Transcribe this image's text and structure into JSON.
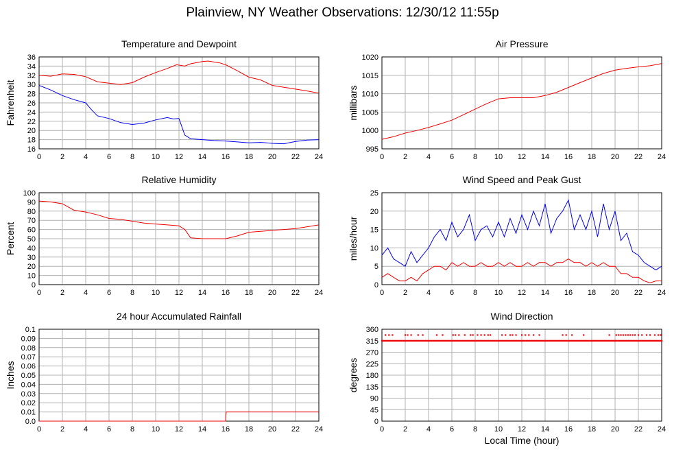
{
  "title": "Plainview, NY Weather Observations: 12/30/12 11:55p",
  "shared_xlabel": "Local Time (hour)",
  "colors": {
    "red": "#ee0000",
    "blue": "#0000ee",
    "grid": "#b0b0b0"
  },
  "chart_data": [
    {
      "type": "line",
      "title": "Temperature and Dewpoint",
      "ylabel": "Fahrenheit",
      "xlim": [
        0,
        24
      ],
      "ylim": [
        16,
        36
      ],
      "xticks": [
        0,
        2,
        4,
        6,
        8,
        10,
        12,
        14,
        16,
        18,
        20,
        22,
        24
      ],
      "yticks": [
        16,
        18,
        20,
        22,
        24,
        26,
        28,
        30,
        32,
        34,
        36
      ],
      "grid": true,
      "series": [
        {
          "color": "#ee0000",
          "x": [
            0,
            1,
            2,
            3,
            4,
            5,
            6,
            7,
            8,
            9,
            10,
            11,
            11.8,
            12.5,
            13,
            14,
            14.5,
            15.5,
            16,
            17,
            18,
            19,
            20,
            21,
            22,
            23,
            24
          ],
          "y": [
            32,
            31.8,
            32.3,
            32.2,
            31.7,
            30.6,
            30.3,
            30,
            30.4,
            31.6,
            32.6,
            33.5,
            34.3,
            34,
            34.5,
            35,
            35.1,
            34.7,
            34.3,
            33,
            31.6,
            31,
            29.8,
            29.4,
            29,
            28.6,
            28.1
          ]
        },
        {
          "color": "#0000ee",
          "x": [
            0,
            1,
            2,
            3,
            4,
            4.5,
            5,
            6,
            7,
            8,
            9,
            10,
            11,
            11.5,
            12,
            12.5,
            13,
            14,
            15,
            16,
            17,
            18,
            19,
            20,
            21,
            22,
            23,
            24
          ],
          "y": [
            29.8,
            28.8,
            27.6,
            26.7,
            26,
            24.5,
            23.2,
            22.6,
            21.7,
            21.3,
            21.6,
            22.3,
            22.8,
            22.5,
            22.6,
            19,
            18.2,
            18,
            17.8,
            17.7,
            17.5,
            17.3,
            17.4,
            17.2,
            17.1,
            17.6,
            17.9,
            18
          ]
        }
      ]
    },
    {
      "type": "line",
      "title": "Air Pressure",
      "ylabel": "millibars",
      "xlim": [
        0,
        24
      ],
      "ylim": [
        995,
        1020
      ],
      "xticks": [
        0,
        2,
        4,
        6,
        8,
        10,
        12,
        14,
        16,
        18,
        20,
        22,
        24
      ],
      "yticks": [
        995,
        1000,
        1005,
        1010,
        1015,
        1020
      ],
      "grid": true,
      "series": [
        {
          "color": "#ee0000",
          "x": [
            0,
            1,
            2,
            3,
            4,
            5,
            6,
            7,
            8,
            9,
            10,
            11,
            12,
            13,
            14,
            15,
            16,
            17,
            18,
            19,
            20,
            21,
            22,
            23,
            24
          ],
          "y": [
            997.6,
            998.3,
            999.3,
            1000,
            1000.8,
            1001.8,
            1002.8,
            1004.3,
            1005.8,
            1007.3,
            1008.6,
            1008.9,
            1008.9,
            1008.9,
            1009.5,
            1010.4,
            1011.7,
            1013,
            1014.3,
            1015.5,
            1016.4,
            1016.9,
            1017.3,
            1017.6,
            1018.2
          ]
        }
      ]
    },
    {
      "type": "line",
      "title": "Relative Humidity",
      "ylabel": "Percent",
      "xlim": [
        0,
        24
      ],
      "ylim": [
        0,
        100
      ],
      "xticks": [
        0,
        2,
        4,
        6,
        8,
        10,
        12,
        14,
        16,
        18,
        20,
        22,
        24
      ],
      "yticks": [
        0,
        10,
        20,
        30,
        40,
        50,
        60,
        70,
        80,
        90,
        100
      ],
      "grid": true,
      "series": [
        {
          "color": "#ee0000",
          "x": [
            0,
            1,
            2,
            3,
            4,
            5,
            6,
            7,
            8,
            9,
            10,
            11,
            12,
            12.5,
            13,
            14,
            15,
            16,
            17,
            18,
            19,
            20,
            21,
            22,
            23,
            24
          ],
          "y": [
            91,
            90,
            88,
            81,
            79,
            76,
            72,
            71,
            69,
            67,
            66,
            65,
            64,
            60,
            51,
            50,
            50,
            50,
            53,
            57,
            58,
            59,
            60,
            61,
            63,
            65
          ]
        }
      ]
    },
    {
      "type": "line",
      "title": "Wind Speed and Peak Gust",
      "ylabel": "miles/hour",
      "xlim": [
        0,
        24
      ],
      "ylim": [
        0,
        25
      ],
      "xticks": [
        0,
        2,
        4,
        6,
        8,
        10,
        12,
        14,
        16,
        18,
        20,
        22,
        24
      ],
      "yticks": [
        0,
        5,
        10,
        15,
        20,
        25
      ],
      "grid": true,
      "series": [
        {
          "color": "#0000ee",
          "x": [
            0,
            0.5,
            1,
            1.5,
            2,
            2.5,
            3,
            3.5,
            4,
            4.5,
            5,
            5.5,
            6,
            6.5,
            7,
            7.5,
            8,
            8.5,
            9,
            9.5,
            10,
            10.5,
            11,
            11.5,
            12,
            12.5,
            13,
            13.5,
            14,
            14.5,
            15,
            15.5,
            16,
            16.5,
            17,
            17.5,
            18,
            18.5,
            19,
            19.5,
            20,
            20.5,
            21,
            21.5,
            22,
            22.5,
            23,
            23.5,
            24
          ],
          "y": [
            8,
            10,
            7,
            6,
            5,
            9,
            6,
            8,
            10,
            13,
            15,
            12,
            17,
            13,
            15,
            19,
            12,
            15,
            16,
            13,
            17,
            13,
            18,
            14,
            19,
            15,
            20,
            16,
            22,
            14,
            18,
            20,
            23,
            15,
            19,
            15,
            20,
            13,
            22,
            15,
            20,
            12,
            14,
            9,
            8,
            6,
            5,
            4,
            5
          ]
        },
        {
          "color": "#ee0000",
          "x": [
            0,
            0.5,
            1,
            1.5,
            2,
            2.5,
            3,
            3.5,
            4,
            4.5,
            5,
            5.5,
            6,
            6.5,
            7,
            7.5,
            8,
            8.5,
            9,
            9.5,
            10,
            10.5,
            11,
            11.5,
            12,
            12.5,
            13,
            13.5,
            14,
            14.5,
            15,
            15.5,
            16,
            16.5,
            17,
            17.5,
            18,
            18.5,
            19,
            19.5,
            20,
            20.5,
            21,
            21.5,
            22,
            22.5,
            23,
            23.5,
            24
          ],
          "y": [
            2,
            3,
            2,
            1,
            1,
            2,
            1,
            3,
            4,
            5,
            5,
            4,
            6,
            5,
            6,
            5,
            5,
            6,
            5,
            5,
            6,
            5,
            6,
            5,
            5,
            6,
            5,
            6,
            6,
            5,
            6,
            6,
            7,
            6,
            6,
            5,
            6,
            5,
            6,
            5,
            5,
            3,
            3,
            2,
            2,
            1,
            0.5,
            1,
            1
          ]
        }
      ]
    },
    {
      "type": "line",
      "title": "24 hour Accumulated Rainfall",
      "ylabel": "Inches",
      "xlim": [
        0,
        24
      ],
      "ylim": [
        0,
        0.1
      ],
      "xticks": [
        0,
        2,
        4,
        6,
        8,
        10,
        12,
        14,
        16,
        18,
        20,
        22,
        24
      ],
      "yticks": [
        0.0,
        0.01,
        0.02,
        0.03,
        0.04,
        0.05,
        0.06,
        0.07,
        0.08,
        0.09,
        0.1
      ],
      "ytick_labels": [
        "0.0",
        "0.01",
        "0.02",
        "0.03",
        "0.04",
        "0.05",
        "0.06",
        "0.07",
        "0.08",
        "0.09",
        "0.1"
      ],
      "grid": true,
      "series": [
        {
          "color": "#ee0000",
          "x": [
            0,
            16,
            16.05,
            24
          ],
          "y": [
            0,
            0,
            0.01,
            0.01
          ]
        }
      ]
    },
    {
      "type": "scatter",
      "title": "Wind Direction",
      "ylabel": "degrees",
      "xlim": [
        0,
        24
      ],
      "ylim": [
        0,
        360
      ],
      "xticks": [
        0,
        2,
        4,
        6,
        8,
        10,
        12,
        14,
        16,
        18,
        20,
        22,
        24
      ],
      "yticks": [
        0,
        45,
        90,
        135,
        180,
        225,
        270,
        315,
        360
      ],
      "grid": true,
      "series": [
        {
          "color": "#ee0000",
          "x": [
            0.3,
            0.6,
            0.9,
            2,
            2.2,
            2.5,
            3.1,
            3.5,
            4.7,
            5.2,
            6.1,
            6.3,
            6.6,
            7.1,
            7.6,
            7.8,
            8.2,
            8.5,
            8.8,
            9.1,
            9.3,
            10.3,
            10.6,
            11,
            11.2,
            11.5,
            12,
            12.3,
            12.6,
            13,
            13.5,
            15.5,
            15.8,
            16.3,
            17.3,
            19.5,
            20.1,
            20.3,
            20.5,
            20.7,
            20.9,
            21.1,
            21.3,
            21.5,
            21.7,
            22,
            22.3,
            22.7,
            23,
            23.4,
            23.7,
            23.9
          ],
          "y": [
            337.5,
            337.5,
            337.5,
            337.5,
            337.5,
            337.5,
            337.5,
            337.5,
            337.5,
            337.5,
            337.5,
            337.5,
            337.5,
            337.5,
            337.5,
            337.5,
            337.5,
            337.5,
            337.5,
            337.5,
            337.5,
            337.5,
            337.5,
            337.5,
            337.5,
            337.5,
            337.5,
            337.5,
            337.5,
            337.5,
            337.5,
            337.5,
            337.5,
            337.5,
            337.5,
            337.5,
            337.5,
            337.5,
            337.5,
            337.5,
            337.5,
            337.5,
            337.5,
            337.5,
            337.5,
            337.5,
            337.5,
            337.5,
            337.5,
            337.5,
            337.5,
            337.5
          ]
        },
        {
          "color": "#ee0000",
          "x_range": [
            0,
            24
          ],
          "x_step": 0.1,
          "y_const": 315
        }
      ]
    }
  ]
}
